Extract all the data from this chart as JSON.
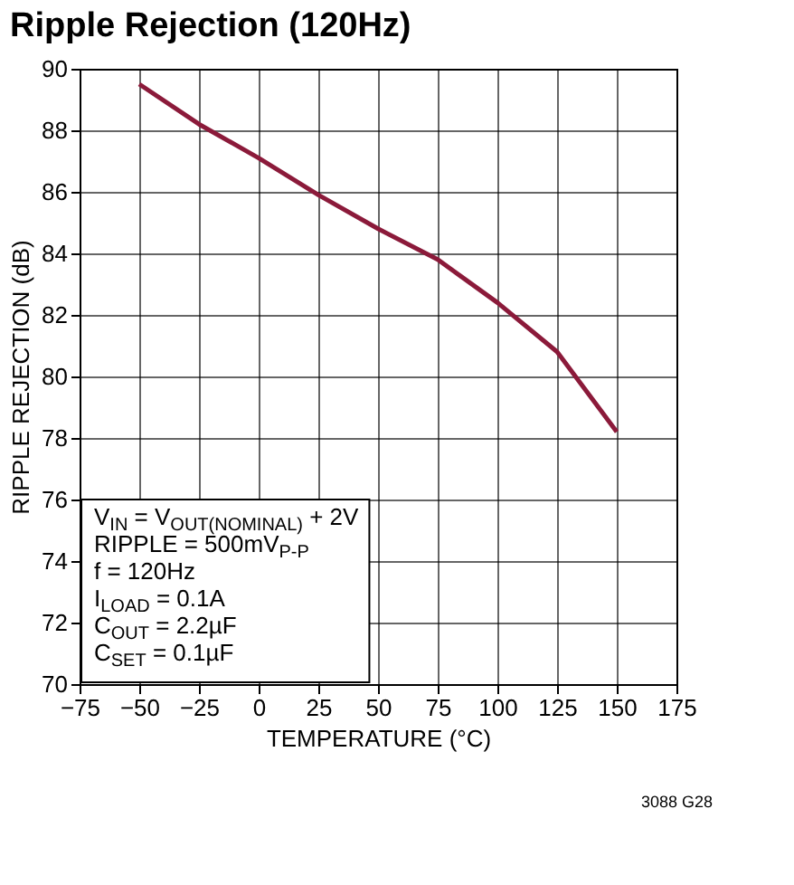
{
  "chart_data": {
    "type": "line",
    "title": "Ripple Rejection (120Hz)",
    "xlabel": "TEMPERATURE (°C)",
    "ylabel": "RIPPLE REJECTION (dB)",
    "x": [
      -50,
      -25,
      0,
      25,
      50,
      75,
      100,
      125,
      150
    ],
    "series": [
      {
        "color": "#8b1a3a",
        "values": [
          89.5,
          88.2,
          87.1,
          85.9,
          84.8,
          83.8,
          82.4,
          80.8,
          78.2
        ]
      }
    ],
    "xlim": [
      -75,
      175
    ],
    "xticks": [
      -75,
      -50,
      -25,
      0,
      25,
      50,
      75,
      100,
      125,
      150,
      175
    ],
    "ylim": [
      70,
      90
    ],
    "yticks": [
      70,
      72,
      74,
      76,
      78,
      80,
      82,
      84,
      86,
      88,
      90
    ],
    "grid": true,
    "marker": "none",
    "line_style": "solid",
    "annotations": [
      "V$_{IN}$ = V$_{OUT(NOMINAL)}$ + 2V",
      "RIPPLE = 500mV$_{P-P}$",
      "f = 120Hz",
      "I$_{LOAD}$ = 0.1A",
      "C$_{OUT}$ = 2.2µF",
      "C$_{SET}$ = 0.1µF",
      "3088 G28"
    ]
  }
}
